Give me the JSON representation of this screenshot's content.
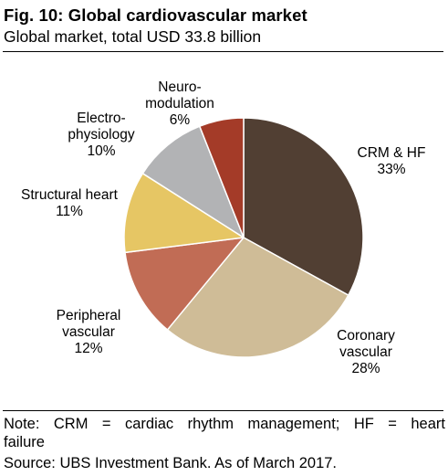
{
  "figure": {
    "title": "Fig. 10: Global cardiovascular market",
    "subtitle": "Global market, total USD 33.8 billion"
  },
  "chart_data": {
    "type": "pie",
    "title": "Fig. 10: Global cardiovascular market",
    "subtitle": "Global market, total USD 33.8 billion",
    "slices": [
      {
        "key": "crm-hf",
        "label_lines": [
          "CRM & HF"
        ],
        "value_text": "33%",
        "value": 33,
        "color": "#513f33"
      },
      {
        "key": "coronary",
        "label_lines": [
          "Coronary",
          "vascular"
        ],
        "value_text": "28%",
        "value": 28,
        "color": "#cfbc97"
      },
      {
        "key": "peripheral",
        "label_lines": [
          "Peripheral",
          "vascular"
        ],
        "value_text": "12%",
        "value": 12,
        "color": "#c16c55"
      },
      {
        "key": "structural",
        "label_lines": [
          "Structural heart"
        ],
        "value_text": "11%",
        "value": 11,
        "color": "#e6c664"
      },
      {
        "key": "electro",
        "label_lines": [
          "Electro-",
          "physiology"
        ],
        "value_text": "10%",
        "value": 10,
        "color": "#b2b3b5"
      },
      {
        "key": "neuro",
        "label_lines": [
          "Neuro-",
          "modulation"
        ],
        "value_text": "6%",
        "value": 6,
        "color": "#a43b28"
      }
    ],
    "start_angle_deg": 0,
    "direction": "clockwise",
    "stroke_color": "#ffffff"
  },
  "footer": {
    "note_words": [
      "Note:",
      "CRM",
      "=",
      "cardiac",
      "rhythm",
      "management;",
      "HF",
      "=",
      "heart"
    ],
    "note_line2": "failure",
    "source": "Source: UBS Investment Bank. As of March 2017."
  }
}
